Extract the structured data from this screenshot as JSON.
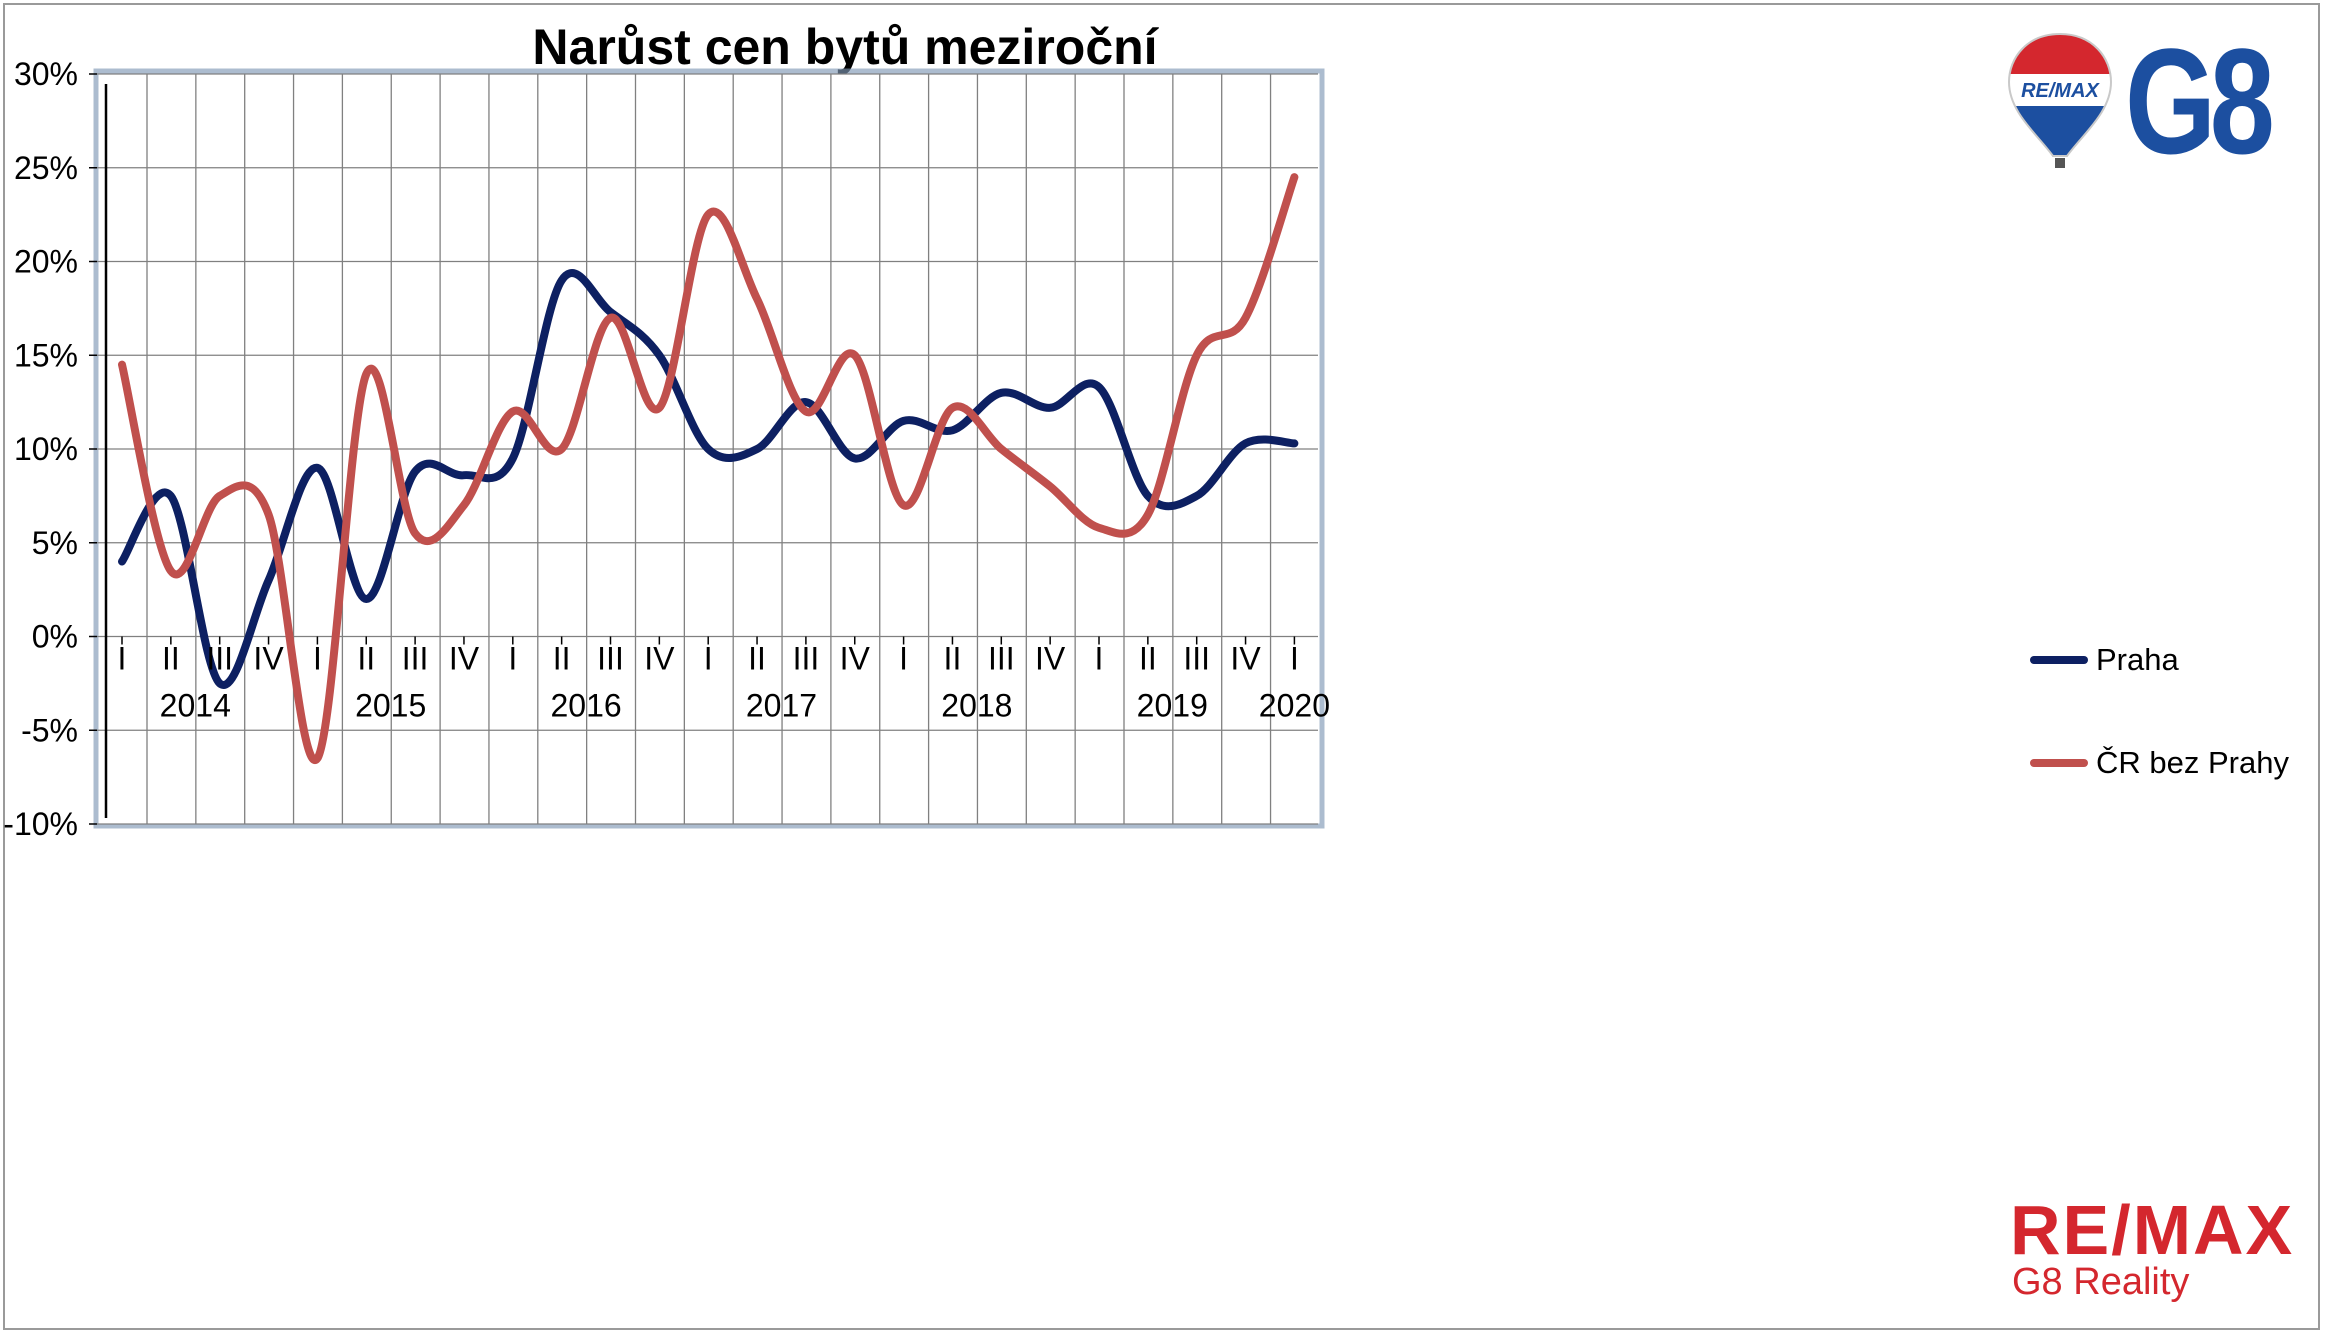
{
  "chart_data": {
    "type": "line",
    "title": "Narůst cen bytů meziroční",
    "quarters": [
      "I",
      "II",
      "III",
      "IV",
      "I",
      "II",
      "III",
      "IV",
      "I",
      "II",
      "III",
      "IV",
      "I",
      "II",
      "III",
      "IV",
      "I",
      "II",
      "III",
      "IV",
      "I",
      "II",
      "III",
      "IV",
      "I"
    ],
    "years": [
      "2014",
      "2015",
      "2016",
      "2017",
      "2018",
      "2019",
      "2020"
    ],
    "yticks": [
      "30%",
      "25%",
      "20%",
      "15%",
      "10%",
      "5%",
      "0%",
      "-5%",
      "-10%"
    ],
    "ylim": [
      -10,
      30
    ],
    "grid": true,
    "legend_position": "right",
    "series": [
      {
        "name": "Praha",
        "color": "#0d2062",
        "values": [
          4.0,
          7.5,
          -2.5,
          3.0,
          9.0,
          2.0,
          8.8,
          8.6,
          9.5,
          19.0,
          17.3,
          15.0,
          10.0,
          10.0,
          12.5,
          9.5,
          11.5,
          11.0,
          13.0,
          12.2,
          13.3,
          7.5,
          7.5,
          10.3,
          10.3
        ]
      },
      {
        "name": "ČR bez Prahy",
        "color": "#c0504d",
        "values": [
          14.5,
          3.5,
          7.5,
          6.5,
          -6.5,
          14.0,
          5.5,
          7.0,
          12.0,
          10.0,
          17.0,
          12.2,
          22.5,
          18.0,
          12.0,
          15.0,
          7.0,
          12.2,
          10.0,
          8.0,
          5.8,
          6.5,
          15.0,
          17.0,
          24.5
        ]
      }
    ]
  },
  "logo": {
    "balloon_text": "RE/MAX",
    "brand": "G8",
    "remax": "RE/MAX",
    "subtitle": "G8 Reality"
  }
}
